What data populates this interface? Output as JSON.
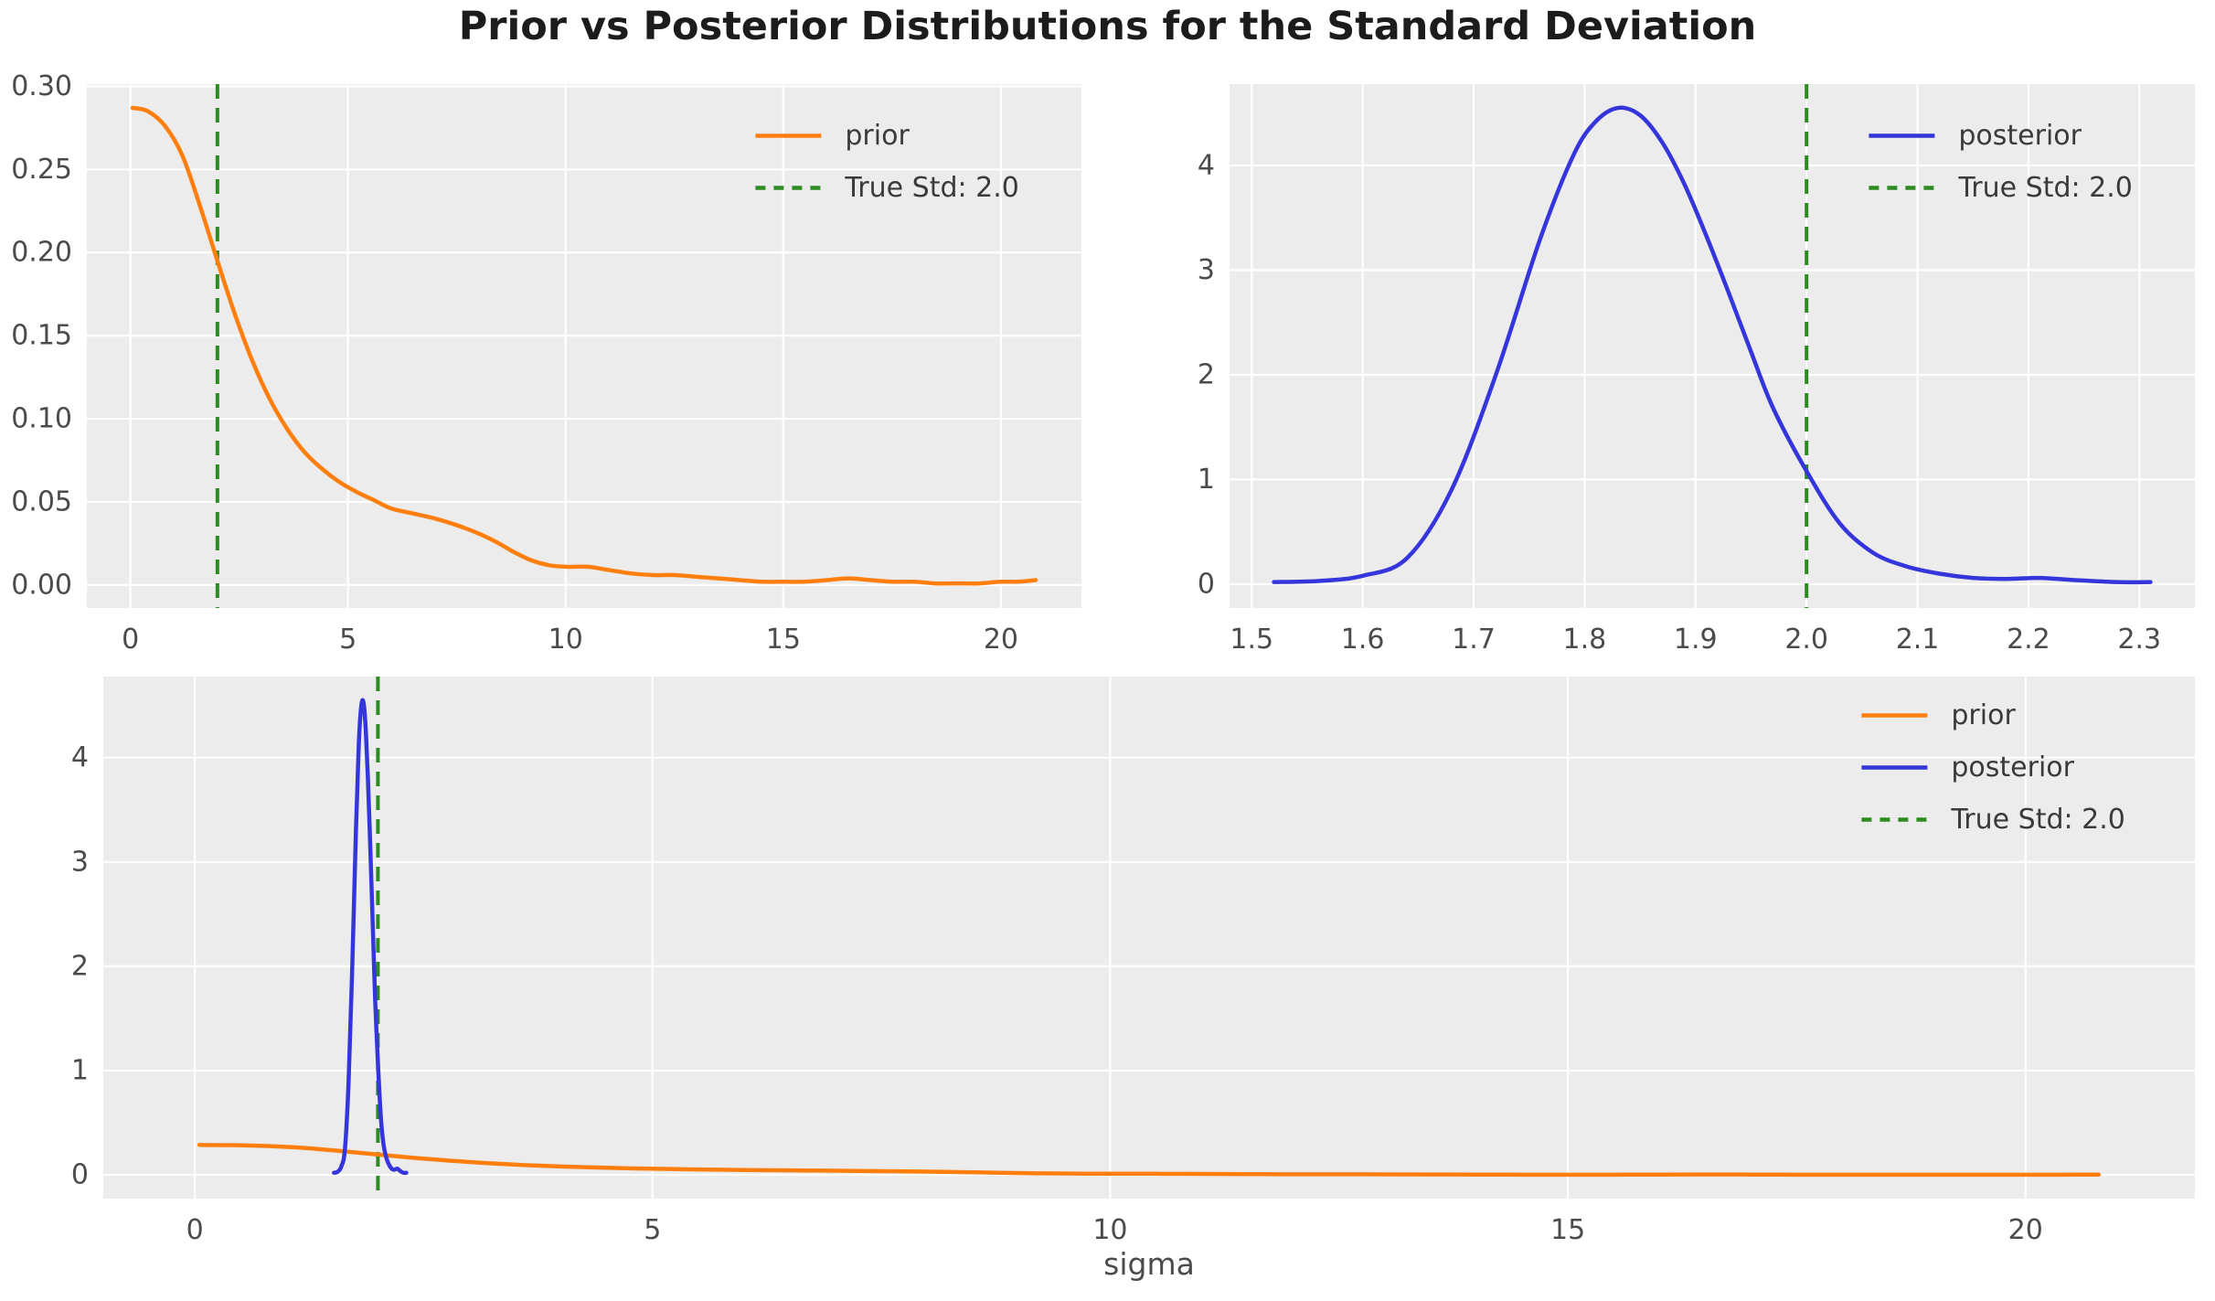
{
  "figure": {
    "title": "Prior vs Posterior Distributions for the Standard Deviation",
    "bottom_xlabel": "sigma"
  },
  "colors": {
    "prior": "#ff7f0e",
    "posterior": "#3535dc",
    "true_std": "#2e8b22",
    "axes_background": "#ececec",
    "grid": "#ffffff",
    "tick_label": "#4b4b4b",
    "title_text": "#1c1c1c",
    "legend_text": "#3a3a3a"
  },
  "chart_data": [
    {
      "name": "prior-distribution",
      "type": "line",
      "xlim": [
        -1.0,
        21.85
      ],
      "ylim": [
        -0.0138,
        0.3013
      ],
      "xticks": [
        0,
        5,
        10,
        15,
        20
      ],
      "xtick_labels": [
        "0",
        "5",
        "10",
        "15",
        "20"
      ],
      "yticks": [
        0.0,
        0.05,
        0.1,
        0.15,
        0.2,
        0.25,
        0.3
      ],
      "ytick_labels": [
        "0.00",
        "0.05",
        "0.10",
        "0.15",
        "0.20",
        "0.25",
        "0.30"
      ],
      "grid": true,
      "legend_position": "upper right",
      "series": [
        {
          "name": "prior",
          "color": "prior",
          "x": [
            0.05,
            0.4,
            0.8,
            1.2,
            1.6,
            2.0,
            2.4,
            2.8,
            3.2,
            3.6,
            4.0,
            4.4,
            4.8,
            5.2,
            5.6,
            6.0,
            6.5,
            7.0,
            7.5,
            8.0,
            8.4,
            8.8,
            9.2,
            9.6,
            10.0,
            10.5,
            11.0,
            11.5,
            12.0,
            12.5,
            13.0,
            13.5,
            14.0,
            14.5,
            15.0,
            15.5,
            16.0,
            16.5,
            17.0,
            17.5,
            18.0,
            18.5,
            19.0,
            19.5,
            20.0,
            20.4,
            20.8
          ],
          "y": [
            0.287,
            0.285,
            0.276,
            0.258,
            0.228,
            0.195,
            0.163,
            0.135,
            0.112,
            0.094,
            0.08,
            0.07,
            0.062,
            0.056,
            0.051,
            0.046,
            0.043,
            0.04,
            0.036,
            0.031,
            0.026,
            0.02,
            0.015,
            0.012,
            0.011,
            0.011,
            0.009,
            0.007,
            0.006,
            0.006,
            0.005,
            0.004,
            0.003,
            0.002,
            0.002,
            0.002,
            0.003,
            0.004,
            0.003,
            0.002,
            0.002,
            0.001,
            0.001,
            0.001,
            0.002,
            0.002,
            0.003
          ]
        }
      ],
      "vlines": [
        {
          "x": 2.0,
          "color": "true_std",
          "style": "dashed",
          "label": "True Std: 2.0"
        }
      ],
      "legend": [
        {
          "label": "prior",
          "color": "prior",
          "style": "solid"
        },
        {
          "label": "True Std: 2.0",
          "color": "true_std",
          "style": "dashed"
        }
      ]
    },
    {
      "name": "posterior-distribution",
      "type": "line",
      "xlim": [
        1.48,
        2.35
      ],
      "ylim": [
        -0.2275,
        4.7775
      ],
      "xticks": [
        1.5,
        1.6,
        1.7,
        1.8,
        1.9,
        2.0,
        2.1,
        2.2,
        2.3
      ],
      "xtick_labels": [
        "1.5",
        "1.6",
        "1.7",
        "1.8",
        "1.9",
        "2.0",
        "2.1",
        "2.2",
        "2.3"
      ],
      "yticks": [
        0,
        1,
        2,
        3,
        4
      ],
      "ytick_labels": [
        "0",
        "1",
        "2",
        "3",
        "4"
      ],
      "grid": true,
      "legend_position": "upper right",
      "series": [
        {
          "name": "posterior",
          "color": "posterior",
          "x": [
            1.52,
            1.56,
            1.6,
            1.64,
            1.68,
            1.72,
            1.76,
            1.79,
            1.81,
            1.83,
            1.85,
            1.87,
            1.89,
            1.91,
            1.93,
            1.95,
            1.97,
            2.0,
            2.03,
            2.06,
            2.09,
            2.12,
            2.15,
            2.18,
            2.21,
            2.24,
            2.28,
            2.31
          ],
          "y": [
            0.02,
            0.03,
            0.08,
            0.25,
            0.9,
            2.0,
            3.3,
            4.1,
            4.42,
            4.55,
            4.48,
            4.22,
            3.82,
            3.32,
            2.78,
            2.22,
            1.68,
            1.08,
            0.58,
            0.3,
            0.17,
            0.1,
            0.06,
            0.05,
            0.06,
            0.04,
            0.02,
            0.02
          ]
        }
      ],
      "vlines": [
        {
          "x": 2.0,
          "color": "true_std",
          "style": "dashed",
          "label": "True Std: 2.0"
        }
      ],
      "legend": [
        {
          "label": "posterior",
          "color": "posterior",
          "style": "solid"
        },
        {
          "label": "True Std: 2.0",
          "color": "true_std",
          "style": "dashed"
        }
      ]
    },
    {
      "name": "prior-vs-posterior-combined",
      "type": "line",
      "xlim": [
        -1.0,
        21.85
      ],
      "ylim": [
        -0.2275,
        4.7775
      ],
      "xticks": [
        0,
        5,
        10,
        15,
        20
      ],
      "xtick_labels": [
        "0",
        "5",
        "10",
        "15",
        "20"
      ],
      "yticks": [
        0,
        1,
        2,
        3,
        4
      ],
      "ytick_labels": [
        "0",
        "1",
        "2",
        "3",
        "4"
      ],
      "grid": true,
      "legend_position": "upper right",
      "xlabel": "sigma",
      "series": [
        {
          "name": "prior",
          "color": "prior",
          "x": [
            0.05,
            0.4,
            0.8,
            1.2,
            1.6,
            2.0,
            2.4,
            2.8,
            3.2,
            3.6,
            4.0,
            4.4,
            4.8,
            5.2,
            5.6,
            6.0,
            6.5,
            7.0,
            7.5,
            8.0,
            8.4,
            8.8,
            9.2,
            9.6,
            10.0,
            10.5,
            11.0,
            11.5,
            12.0,
            12.5,
            13.0,
            13.5,
            14.0,
            14.5,
            15.0,
            15.5,
            16.0,
            16.5,
            17.0,
            17.5,
            18.0,
            18.5,
            19.0,
            19.5,
            20.0,
            20.4,
            20.8
          ],
          "y": [
            0.287,
            0.285,
            0.276,
            0.258,
            0.228,
            0.195,
            0.163,
            0.135,
            0.112,
            0.094,
            0.08,
            0.07,
            0.062,
            0.056,
            0.051,
            0.046,
            0.043,
            0.04,
            0.036,
            0.031,
            0.026,
            0.02,
            0.015,
            0.012,
            0.011,
            0.011,
            0.009,
            0.007,
            0.006,
            0.006,
            0.005,
            0.004,
            0.003,
            0.002,
            0.002,
            0.002,
            0.003,
            0.004,
            0.003,
            0.002,
            0.002,
            0.001,
            0.001,
            0.001,
            0.002,
            0.002,
            0.003
          ]
        },
        {
          "name": "posterior",
          "color": "posterior",
          "x": [
            1.52,
            1.56,
            1.6,
            1.64,
            1.68,
            1.72,
            1.76,
            1.79,
            1.81,
            1.83,
            1.85,
            1.87,
            1.89,
            1.91,
            1.93,
            1.95,
            1.97,
            2.0,
            2.03,
            2.06,
            2.09,
            2.12,
            2.15,
            2.18,
            2.21,
            2.24,
            2.28,
            2.31
          ],
          "y": [
            0.02,
            0.03,
            0.08,
            0.25,
            0.9,
            2.0,
            3.3,
            4.1,
            4.42,
            4.55,
            4.48,
            4.22,
            3.82,
            3.32,
            2.78,
            2.22,
            1.68,
            1.08,
            0.58,
            0.3,
            0.17,
            0.1,
            0.06,
            0.05,
            0.06,
            0.04,
            0.02,
            0.02
          ]
        }
      ],
      "vlines": [
        {
          "x": 2.0,
          "color": "true_std",
          "style": "dashed",
          "label": "True Std: 2.0"
        }
      ],
      "legend": [
        {
          "label": "prior",
          "color": "prior",
          "style": "solid"
        },
        {
          "label": "posterior",
          "color": "posterior",
          "style": "solid"
        },
        {
          "label": "True Std: 2.0",
          "color": "true_std",
          "style": "dashed"
        }
      ]
    }
  ]
}
